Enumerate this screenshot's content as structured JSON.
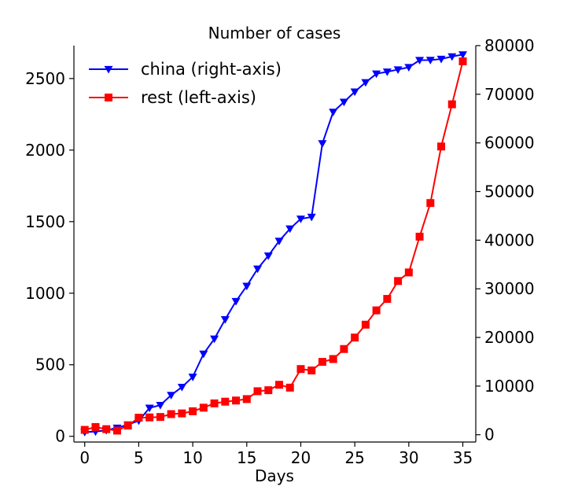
{
  "chart_data": {
    "type": "line",
    "title": "Number of cases",
    "xlabel": "Days",
    "ylabel": "",
    "ylabel_right": "",
    "xlim": [
      -1,
      36.2
    ],
    "ylim_left": [
      -40,
      2730
    ],
    "ylim_right": [
      -1500,
      80000
    ],
    "xticks": [
      0,
      5,
      10,
      15,
      20,
      25,
      30,
      35
    ],
    "yticks_left": [
      0,
      500,
      1000,
      1500,
      2000,
      2500
    ],
    "yticks_right": [
      0,
      10000,
      20000,
      30000,
      40000,
      50000,
      60000,
      70000,
      80000
    ],
    "grid": false,
    "legend_position": "top-left",
    "x": [
      0,
      1,
      2,
      3,
      4,
      5,
      6,
      7,
      8,
      9,
      10,
      11,
      12,
      13,
      14,
      15,
      16,
      17,
      18,
      19,
      20,
      21,
      22,
      23,
      24,
      25,
      26,
      27,
      28,
      29,
      30,
      31,
      32,
      33,
      34,
      35
    ],
    "series": [
      {
        "name": "china (right-axis)",
        "axis": "right",
        "color": "#0000ff",
        "marker": "triangle-down",
        "values": [
          548,
          643,
          920,
          1406,
          2075,
          2877,
          5509,
          6087,
          8141,
          9802,
          11891,
          16630,
          19716,
          23707,
          27440,
          30587,
          34110,
          36814,
          39829,
          42354,
          44386,
          44759,
          59895,
          66358,
          68413,
          70513,
          72434,
          74211,
          74619,
          75077,
          75550,
          77001,
          77022,
          77241,
          77754,
          78166
        ]
      },
      {
        "name": "rest (left-axis)",
        "axis": "left",
        "color": "#ff0000",
        "marker": "square",
        "values": [
          45,
          65,
          50,
          40,
          75,
          130,
          132,
          135,
          155,
          160,
          175,
          200,
          230,
          242,
          250,
          260,
          315,
          322,
          360,
          340,
          470,
          460,
          520,
          540,
          610,
          690,
          780,
          880,
          960,
          1085,
          1145,
          1395,
          1630,
          2025,
          2320,
          2620
        ]
      }
    ]
  }
}
